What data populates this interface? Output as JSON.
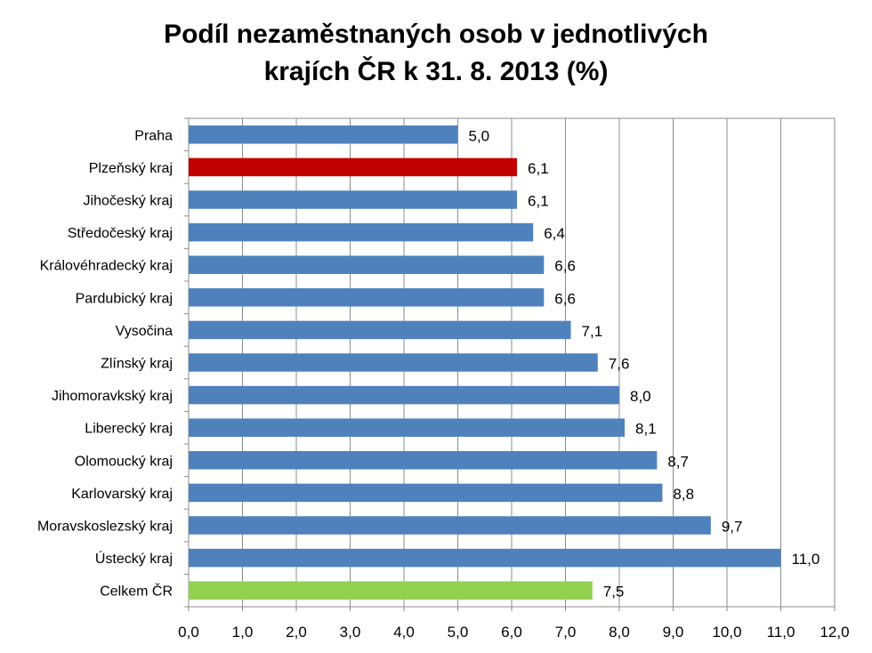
{
  "chart_data": {
    "type": "bar",
    "orientation": "horizontal",
    "title_line1": "Podíl nezaměstnaných osob v jednotlivých",
    "title_line2": "krajích ČR k 31. 8. 2013 (%)",
    "categories": [
      "Praha",
      "Plzeňský kraj",
      "Jihočeský kraj",
      "Středočeský kraj",
      "Královéhradecký kraj",
      "Pardubický kraj",
      "Vysočina",
      "Zlínský kraj",
      "Jihomoravkský kraj",
      "Liberecký kraj",
      "Olomoucký kraj",
      "Karlovarský kraj",
      "Moravskoslezský kraj",
      "Ústecký kraj",
      "Celkem ČR"
    ],
    "values": [
      5.0,
      6.1,
      6.1,
      6.4,
      6.6,
      6.6,
      7.1,
      7.6,
      8.0,
      8.1,
      8.7,
      8.8,
      9.7,
      11.0,
      7.5
    ],
    "value_labels": [
      "5,0",
      "6,1",
      "6,1",
      "6,4",
      "6,6",
      "6,6",
      "7,1",
      "7,6",
      "8,0",
      "8,1",
      "8,7",
      "8,8",
      "9,7",
      "11,0",
      "7,5"
    ],
    "bar_colors": [
      "#4f81bd",
      "#c00000",
      "#4f81bd",
      "#4f81bd",
      "#4f81bd",
      "#4f81bd",
      "#4f81bd",
      "#4f81bd",
      "#4f81bd",
      "#4f81bd",
      "#4f81bd",
      "#4f81bd",
      "#4f81bd",
      "#4f81bd",
      "#92d050"
    ],
    "xlim": [
      0,
      12
    ],
    "xticks": [
      0,
      1,
      2,
      3,
      4,
      5,
      6,
      7,
      8,
      9,
      10,
      11,
      12
    ],
    "xtick_labels": [
      "0,0",
      "1,0",
      "2,0",
      "3,0",
      "4,0",
      "5,0",
      "6,0",
      "7,0",
      "8,0",
      "9,0",
      "10,0",
      "11,0",
      "12,0"
    ],
    "grid": "vertical",
    "legend": "none"
  }
}
